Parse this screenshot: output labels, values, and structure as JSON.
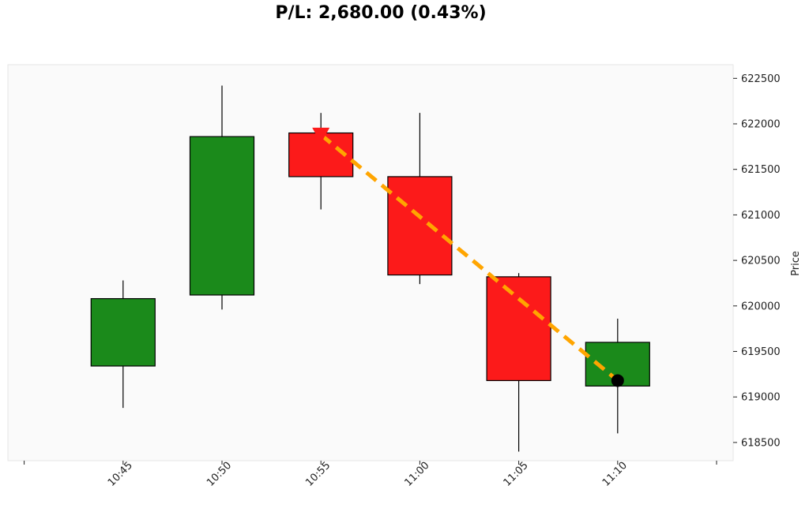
{
  "chart_data": {
    "type": "candlestick",
    "title": "P/L: 2,680.00 (0.43%)",
    "xlabel": "",
    "ylabel": "Price",
    "ylim": [
      618300,
      622650
    ],
    "y_ticks": [
      618500,
      619000,
      619500,
      620000,
      620500,
      621000,
      621500,
      622000,
      622500
    ],
    "x_ticks": [
      "10:45",
      "10:50",
      "10:55",
      "11:00",
      "11:05",
      "11:10"
    ],
    "candles": [
      {
        "time": "10:45",
        "open": 619340,
        "high": 620280,
        "low": 618880,
        "close": 620080
      },
      {
        "time": "10:50",
        "open": 620120,
        "high": 622420,
        "low": 619960,
        "close": 621860
      },
      {
        "time": "10:55",
        "open": 621900,
        "high": 622120,
        "low": 621060,
        "close": 621420
      },
      {
        "time": "11:00",
        "open": 621420,
        "high": 622120,
        "low": 620240,
        "close": 620340
      },
      {
        "time": "11:05",
        "open": 620320,
        "high": 620360,
        "low": 618400,
        "close": 619180
      },
      {
        "time": "11:10",
        "open": 619120,
        "high": 619860,
        "low": 618600,
        "close": 619600
      }
    ],
    "trade": {
      "entry_time": "10:55",
      "entry_price": 621880,
      "exit_time": "11:10",
      "exit_price": 619180
    },
    "colors": {
      "up": "#1b8a1b",
      "down": "#fc1a1a",
      "trade_line": "#ffa500",
      "entry_marker": "#fc1a1a",
      "exit_marker": "#000000",
      "plot_bg": "#fafafa"
    },
    "grid": false
  }
}
